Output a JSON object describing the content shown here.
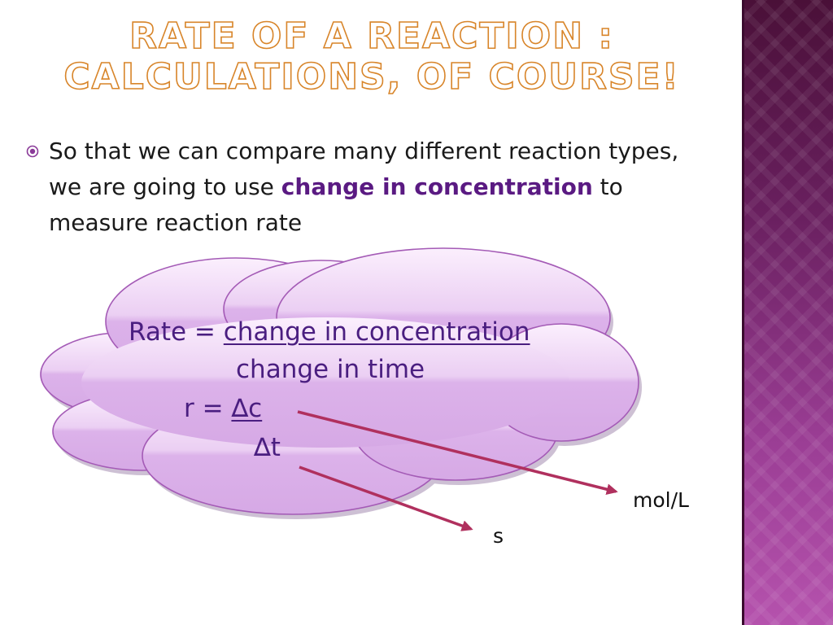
{
  "slide": {
    "title_line1": "Rate of a Reaction :",
    "title_line2": "Calculations, of course!",
    "bullet": {
      "text_before": "So that we can compare many different reaction types, we are going to use ",
      "highlight": "change in concentration",
      "text_after": " to measure reaction rate"
    },
    "cloud": {
      "rate_label": "Rate = ",
      "numerator": "change in concentration",
      "denominator": "change in time",
      "r_eq": "r  =  ",
      "delta_c": "∆c",
      "delta_t": "∆t"
    },
    "units": {
      "concentration": "mol/L",
      "time": "s"
    }
  },
  "colors": {
    "title_outline": "#d8852a",
    "accent_text": "#5a1a82",
    "cloud_fill": "#e2b8ee",
    "arrow": "#b0305e",
    "side_band": "#6a2060"
  },
  "icons": {
    "bullet": "target-bullet-icon"
  }
}
